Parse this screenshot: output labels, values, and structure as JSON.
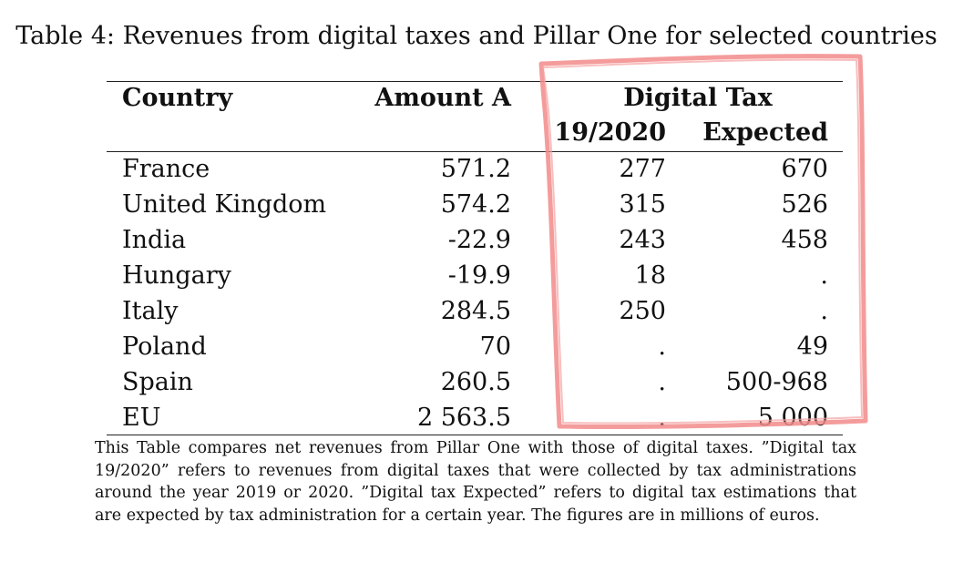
{
  "caption": "Table 4: Revenues from digital taxes and Pillar One for selected countries",
  "table": {
    "headers": {
      "country": "Country",
      "amount_a": "Amount A",
      "digital_tax": "Digital Tax",
      "dt_19_2020": "19/2020",
      "dt_expected": "Expected"
    },
    "rows": [
      {
        "country": "France",
        "amount_a": "571.2",
        "dt_19_2020": "277",
        "dt_expected": "670"
      },
      {
        "country": "United Kingdom",
        "amount_a": "574.2",
        "dt_19_2020": "315",
        "dt_expected": "526"
      },
      {
        "country": "India",
        "amount_a": "-22.9",
        "dt_19_2020": "243",
        "dt_expected": "458"
      },
      {
        "country": "Hungary",
        "amount_a": "-19.9",
        "dt_19_2020": "18",
        "dt_expected": "."
      },
      {
        "country": "Italy",
        "amount_a": "284.5",
        "dt_19_2020": "250",
        "dt_expected": "."
      },
      {
        "country": "Poland",
        "amount_a": "70",
        "dt_19_2020": ".",
        "dt_expected": "49"
      },
      {
        "country": "Spain",
        "amount_a": "260.5",
        "dt_19_2020": ".",
        "dt_expected": "500-968"
      },
      {
        "country": "EU",
        "amount_a": "2 563.5",
        "dt_19_2020": ".",
        "dt_expected": "5 000"
      }
    ]
  },
  "note": "This Table compares net revenues from Pillar One with those of digital taxes. ”Digital tax 19/2020” refers to revenues from digital taxes that were collected by tax administrations around the year 2019 or 2020. ”Digital tax Expected” refers to digital tax estimations that are expected by tax administration for a certain year. The figures are in millions of euros.",
  "colors": {
    "highlight": "#f28b8b",
    "text": "#111111"
  }
}
